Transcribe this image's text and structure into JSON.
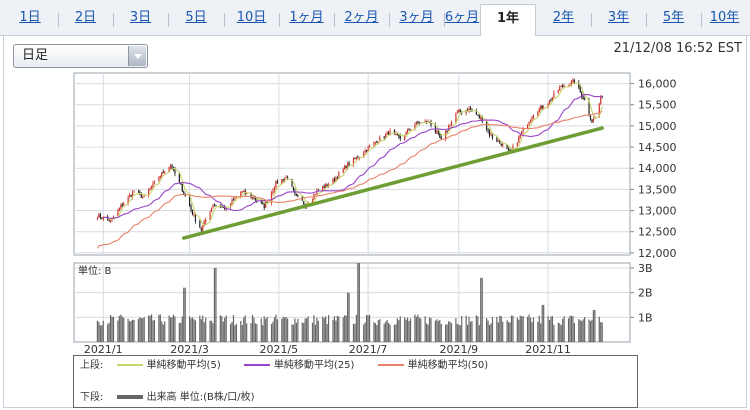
{
  "tabs": [
    "1日",
    "2日",
    "3日",
    "5日",
    "10日",
    "1ヶ月",
    "2ヶ月",
    "3ヶ月",
    "6ヶ月",
    "1年",
    "2年",
    "3年",
    "5年",
    "10年"
  ],
  "active_tab": "1年",
  "period_select": "日足",
  "timestamp": "21/12/08 16:52 EST",
  "legend": {
    "upper_label": "上段:",
    "lower_label": "下段:",
    "sma5": "単純移動平均(5)",
    "sma25": "単純移動平均(25)",
    "sma50": "単純移動平均(50)",
    "volume": "出来高 単位:(B株/口/枚)"
  },
  "colors": {
    "up": "#d0342c",
    "down": "#222222",
    "sma5": "#c8d46a",
    "sma25": "#9b45c9",
    "sma50": "#e8826a",
    "trendline": "#6e9e33",
    "volume": "#666666"
  },
  "chart_data": [
    {
      "type": "candlestick",
      "y_ticks": [
        "16,000",
        "15,500",
        "15,000",
        "14,500",
        "14,000",
        "13,500",
        "13,000",
        "12,500",
        "12,000"
      ],
      "ylim": [
        11950,
        16250
      ],
      "x_ticks": [
        "2021/1",
        "2021/3",
        "2021/5",
        "2021/7",
        "2021/9",
        "2021/11"
      ],
      "close_anchors": [
        [
          "2020/12/28",
          12880
        ],
        [
          "2021/01/06",
          12750
        ],
        [
          "2021/01/13",
          13100
        ],
        [
          "2021/01/22",
          13450
        ],
        [
          "2021/01/29",
          13300
        ],
        [
          "2021/02/08",
          13800
        ],
        [
          "2021/02/16",
          14080
        ],
        [
          "2021/02/24",
          13500
        ],
        [
          "2021/03/04",
          12850
        ],
        [
          "2021/03/09",
          12550
        ],
        [
          "2021/03/17",
          13150
        ],
        [
          "2021/03/26",
          13050
        ],
        [
          "2021/04/05",
          13450
        ],
        [
          "2021/04/14",
          13300
        ],
        [
          "2021/04/21",
          13100
        ],
        [
          "2021/04/29",
          13650
        ],
        [
          "2021/05/07",
          13800
        ],
        [
          "2021/05/12",
          13350
        ],
        [
          "2021/05/19",
          13150
        ],
        [
          "2021/05/27",
          13450
        ],
        [
          "2021/06/07",
          13700
        ],
        [
          "2021/06/16",
          14050
        ],
        [
          "2021/06/25",
          14300
        ],
        [
          "2021/07/07",
          14650
        ],
        [
          "2021/07/16",
          14850
        ],
        [
          "2021/07/23",
          14700
        ],
        [
          "2021/08/02",
          15050
        ],
        [
          "2021/08/12",
          15100
        ],
        [
          "2021/08/20",
          14650
        ],
        [
          "2021/08/30",
          15300
        ],
        [
          "2021/09/08",
          15400
        ],
        [
          "2021/09/17",
          15150
        ],
        [
          "2021/09/22",
          14800
        ],
        [
          "2021/10/01",
          14550
        ],
        [
          "2021/10/06",
          14350
        ],
        [
          "2021/10/15",
          14900
        ],
        [
          "2021/10/22",
          15300
        ],
        [
          "2021/11/01",
          15550
        ],
        [
          "2021/11/09",
          15900
        ],
        [
          "2021/11/19",
          16050
        ],
        [
          "2021/11/26",
          15600
        ],
        [
          "2021/12/01",
          15100
        ],
        [
          "2021/12/03",
          15200
        ],
        [
          "2021/12/08",
          15750
        ]
      ],
      "trendline": [
        [
          "2021/02/25",
          12350
        ],
        [
          "2021/12/08",
          14950
        ]
      ],
      "volume": {
        "y_ticks": [
          "3B",
          "2B",
          "1B"
        ],
        "ylim": [
          0,
          3.2
        ],
        "base_level": 0.9,
        "spikes": [
          [
            "2021/02/26",
            2.2
          ],
          [
            "2021/03/19",
            3.0
          ],
          [
            "2021/06/18",
            2.0
          ],
          [
            "2021/06/25",
            3.2
          ],
          [
            "2021/09/17",
            2.6
          ],
          [
            "2021/10/29",
            1.5
          ],
          [
            "2021/12/03",
            1.3
          ]
        ]
      }
    }
  ]
}
